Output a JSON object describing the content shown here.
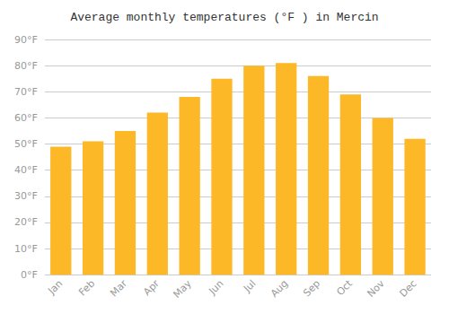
{
  "chart_data": {
    "type": "bar",
    "title": "Average monthly temperatures (°F ) in Mercin",
    "categories": [
      "Jan",
      "Feb",
      "Mar",
      "Apr",
      "May",
      "Jun",
      "Jul",
      "Aug",
      "Sep",
      "Oct",
      "Nov",
      "Dec"
    ],
    "values": [
      49,
      51,
      55,
      62,
      68,
      75,
      80,
      81,
      76,
      69,
      60,
      52
    ],
    "color": "#FDB827",
    "ylim": [
      0,
      90
    ],
    "yticks": [
      {
        "value": 0,
        "label": "0°F"
      },
      {
        "value": 10,
        "label": "10°F"
      },
      {
        "value": 20,
        "label": "20°F"
      },
      {
        "value": 30,
        "label": "30°F"
      },
      {
        "value": 40,
        "label": "40°F"
      },
      {
        "value": 50,
        "label": "50°F"
      },
      {
        "value": 60,
        "label": "60°F"
      },
      {
        "value": 70,
        "label": "70°F"
      },
      {
        "value": 80,
        "label": "80°F"
      },
      {
        "value": 90,
        "label": "90°F"
      }
    ],
    "grid": true
  }
}
